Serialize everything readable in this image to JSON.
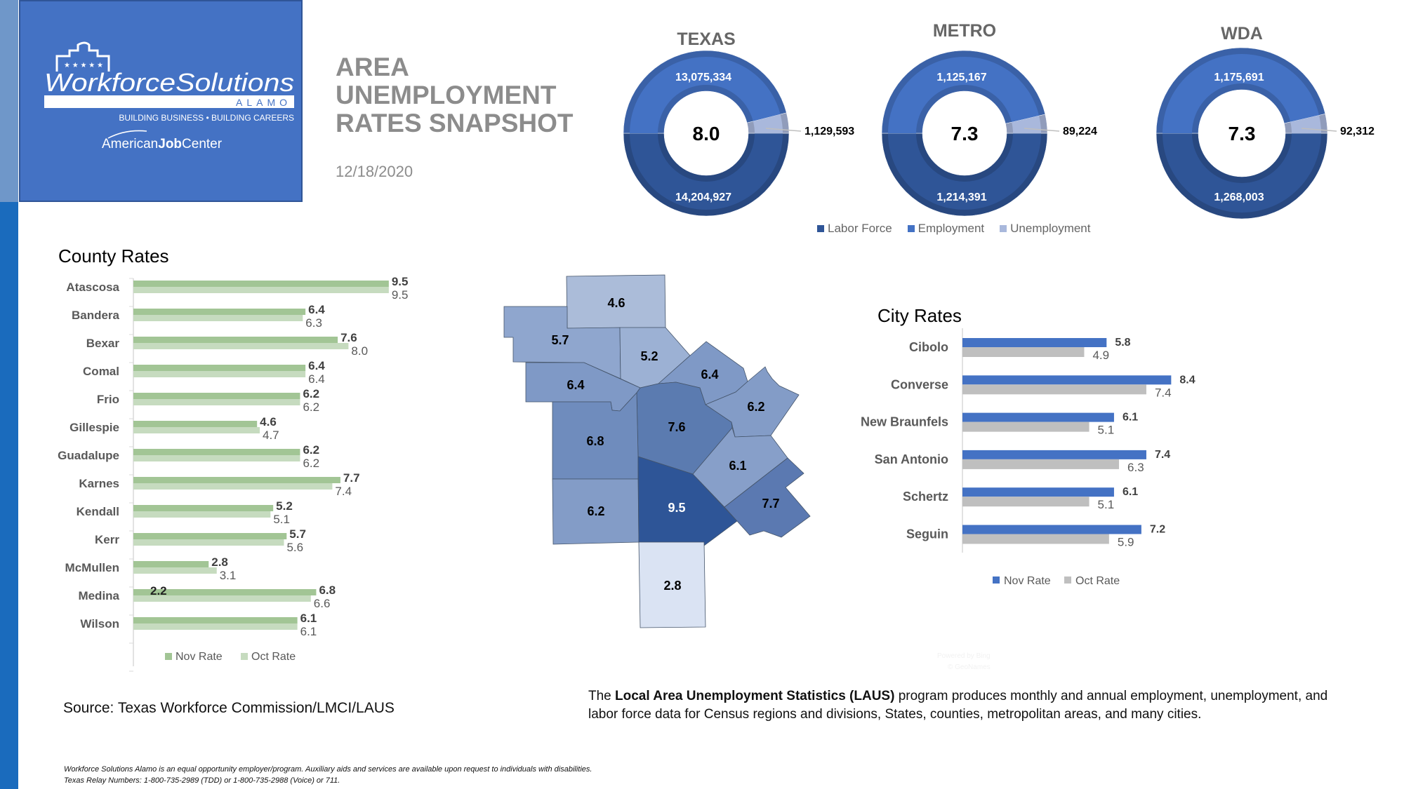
{
  "logo": {
    "brand": "WorkforceSolutions",
    "sub": "ALAMO",
    "tagline": "BUILDING BUSINESS • BUILDING CAREERS",
    "ajc_prefix": "American",
    "ajc_bold": "Job",
    "ajc_suffix": "Center"
  },
  "header": {
    "title_lines": [
      "AREA",
      "UNEMPLOYMENT",
      "RATES SNAPSHOT"
    ],
    "date": "12/18/2020"
  },
  "colors": {
    "labor_force": "#2f5597",
    "employment": "#4472c4",
    "unemployment": "#a9b8dc",
    "county_nov": "#a2c595",
    "county_oct": "#c6dbbf",
    "city_nov": "#4472c4",
    "city_oct": "#bfbfbf"
  },
  "donut_legend": [
    "Labor Force",
    "Employment",
    "Unemployment"
  ],
  "county_section": {
    "title": "County Rates"
  },
  "city_section": {
    "title": "City Rates"
  },
  "map": {
    "counties": [
      {
        "name": "Gillespie",
        "value": "4.6",
        "color": "#abbcd9"
      },
      {
        "name": "Kerr",
        "value": "5.7",
        "color": "#8fa6ce"
      },
      {
        "name": "Kendall",
        "value": "5.2",
        "color": "#9cb1d4"
      },
      {
        "name": "Comal",
        "value": "6.4",
        "color": "#7f99c6"
      },
      {
        "name": "Guadalupe",
        "value": "6.2",
        "color": "#839cc7"
      },
      {
        "name": "Bandera",
        "value": "6.4",
        "color": "#7f99c6"
      },
      {
        "name": "Bexar",
        "value": "7.6",
        "color": "#5b7bb0"
      },
      {
        "name": "Medina",
        "value": "6.8",
        "color": "#6f8cbd"
      },
      {
        "name": "Frio",
        "value": "6.2",
        "color": "#839cc7"
      },
      {
        "name": "Atascosa",
        "value": "9.5",
        "color": "#2e5597"
      },
      {
        "name": "Wilson",
        "value": "6.1",
        "color": "#879fc9"
      },
      {
        "name": "Karnes",
        "value": "7.7",
        "color": "#5b79b1"
      },
      {
        "name": "McMullen",
        "value": "2.8",
        "color": "#dae3f3"
      }
    ],
    "attribution": [
      "Powered by Bing",
      "© GeoNames"
    ]
  },
  "chart_data": [
    {
      "type": "pie",
      "title": "TEXAS",
      "center_label": "8.0",
      "categories": [
        "Labor Force",
        "Employment",
        "Unemployment"
      ],
      "values": [
        14204927,
        13075334,
        1129593
      ],
      "labels": [
        "14,204,927",
        "13,075,334",
        "1,129,593"
      ]
    },
    {
      "type": "pie",
      "title": "METRO",
      "center_label": "7.3",
      "categories": [
        "Labor Force",
        "Employment",
        "Unemployment"
      ],
      "values": [
        1214391,
        1125167,
        89224
      ],
      "labels": [
        "1,214,391",
        "1,125,167",
        "89,224"
      ]
    },
    {
      "type": "pie",
      "title": "WDA",
      "center_label": "7.3",
      "categories": [
        "Labor Force",
        "Employment",
        "Unemployment"
      ],
      "values": [
        1268003,
        1175691,
        92312
      ],
      "labels": [
        "1,268,003",
        "1,175,691",
        "92,312"
      ]
    },
    {
      "type": "bar",
      "title": "County Rates",
      "orientation": "horizontal",
      "categories": [
        "Atascosa",
        "Bandera",
        "Bexar",
        "Comal",
        "Frio",
        "Gillespie",
        "Guadalupe",
        "Karnes",
        "Kendall",
        "Kerr",
        "McMullen",
        "Medina",
        "Wilson"
      ],
      "series": [
        {
          "name": "Nov Rate",
          "values": [
            9.5,
            6.4,
            7.6,
            6.4,
            6.2,
            4.6,
            6.2,
            7.7,
            5.2,
            5.7,
            2.8,
            6.8,
            6.1
          ],
          "labels": [
            "9.5",
            "6.4",
            "7.6",
            "6.4",
            "6.2",
            "4.6",
            "6.2",
            "7.7",
            "5.2",
            "5.7",
            "2.8",
            "6.8",
            "6.1"
          ]
        },
        {
          "name": "Oct Rate",
          "values": [
            9.5,
            6.3,
            8.0,
            6.4,
            6.2,
            4.7,
            6.2,
            7.4,
            5.1,
            5.6,
            3.1,
            6.6,
            6.1
          ],
          "labels": [
            "9.5",
            "6.3",
            "8.0",
            "6.4",
            "6.2",
            "4.7",
            "6.2",
            "7.4",
            "5.1",
            "5.6",
            "3.1",
            "6.6",
            "6.1"
          ]
        }
      ],
      "stray_label": "2.2",
      "legend": "bottom",
      "grid": false
    },
    {
      "type": "bar",
      "title": "City Rates",
      "orientation": "horizontal",
      "categories": [
        "Cibolo",
        "Converse",
        "New Braunfels",
        "San Antonio",
        "Schertz",
        "Seguin"
      ],
      "series": [
        {
          "name": "Nov Rate",
          "values": [
            5.8,
            8.4,
            6.1,
            7.4,
            6.1,
            7.2
          ],
          "labels": [
            "5.8",
            "8.4",
            "6.1",
            "7.4",
            "6.1",
            "7.2"
          ]
        },
        {
          "name": "Oct Rate",
          "values": [
            4.9,
            7.4,
            5.1,
            6.3,
            5.1,
            5.9
          ],
          "labels": [
            "4.9",
            "7.4",
            "5.1",
            "6.3",
            "5.1",
            "5.9"
          ]
        }
      ],
      "legend": "bottom",
      "grid": false
    }
  ],
  "footer": {
    "source": "Source: Texas Workforce Commission/LMCI/LAUS",
    "laus_pre": "The ",
    "laus_bold": "Local Area Unemployment Statistics (LAUS)",
    "laus_post": " program produces monthly and annual employment, unemployment, and labor force data for Census regions and divisions, States, counties, metropolitan areas, and many cities.",
    "fine_1": "Workforce Solutions Alamo is an equal opportunity employer/program. Auxiliary aids and services are available upon request to individuals with disabilities.",
    "fine_2": "Texas Relay Numbers: 1-800-735-2989 (TDD) or 1-800-735-2988 (Voice) or 711."
  }
}
